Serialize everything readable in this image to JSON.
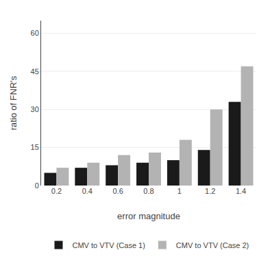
{
  "chart_data": {
    "type": "bar",
    "categories": [
      "0.2",
      "0.4",
      "0.6",
      "0.8",
      "1",
      "1.2",
      "1.4"
    ],
    "series": [
      {
        "name": "CMV to VTV (Case 1)",
        "color": "#1a1a1a",
        "values": [
          5,
          7,
          8,
          9,
          10,
          14,
          33
        ]
      },
      {
        "name": "CMV to VTV (Case 2)",
        "color": "#b3b3b3",
        "values": [
          7,
          9,
          12,
          13,
          18,
          30,
          47
        ]
      }
    ],
    "xlabel": "error magnitude",
    "ylabel": "ratio of FNR's",
    "ylim": [
      0,
      65
    ],
    "yticks": [
      0,
      15,
      30,
      45,
      60
    ],
    "grid": true,
    "legend": "bottom"
  }
}
